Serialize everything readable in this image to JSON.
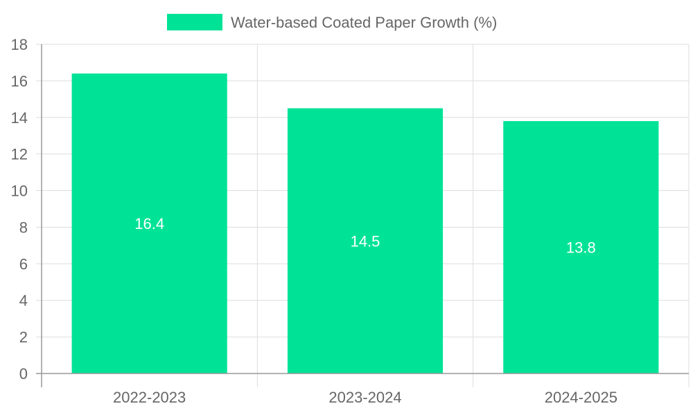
{
  "chart_data": {
    "type": "bar",
    "categories": [
      "2022-2023",
      "2023-2024",
      "2024-2025"
    ],
    "series": [
      {
        "name": "Water-based Coated Paper Growth (%)",
        "values": [
          16.4,
          14.5,
          13.8
        ],
        "color": "#00e396"
      }
    ],
    "data_labels": [
      "16.4",
      "14.5",
      "13.8"
    ],
    "ylim": [
      0,
      18
    ],
    "yticks": [
      0,
      2,
      4,
      6,
      8,
      10,
      12,
      14,
      16,
      18
    ],
    "grid": true,
    "legend_position": "top-center",
    "title": "",
    "xlabel": "",
    "ylabel": ""
  },
  "colors": {
    "bar": "#00e396",
    "text": "#666666",
    "grid": "#dddddd",
    "axis": "#999999",
    "data_label": "#ffffff"
  }
}
